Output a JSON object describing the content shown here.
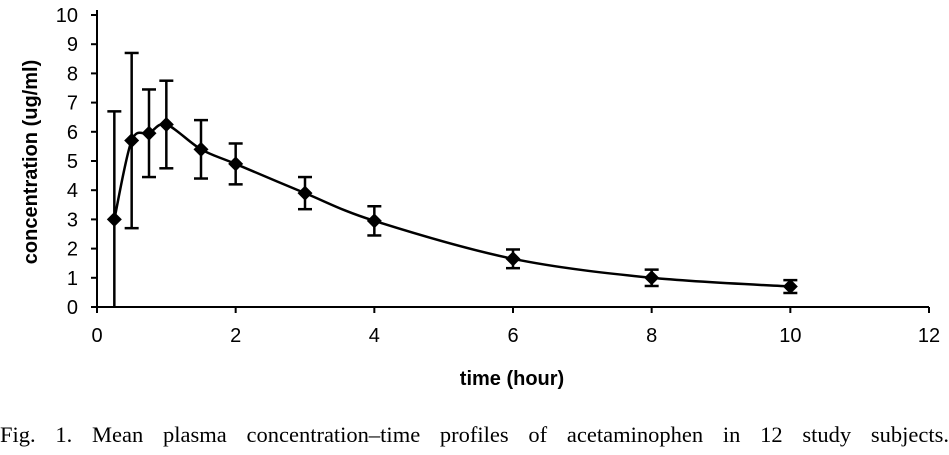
{
  "chart_data": {
    "type": "line",
    "title": "",
    "xlabel": "time (hour)",
    "ylabel": "concentration (ug/ml)",
    "xlim": [
      0,
      12
    ],
    "ylim": [
      0,
      10
    ],
    "xticks": [
      "0",
      "2",
      "4",
      "6",
      "8",
      "10",
      "12"
    ],
    "yticks": [
      "0",
      "1",
      "2",
      "3",
      "4",
      "5",
      "6",
      "7",
      "8",
      "9",
      "10"
    ],
    "grid": false,
    "legend": "none",
    "marker": "diamond",
    "series": [
      {
        "x": [
          0.25,
          0.5,
          0.75,
          1,
          1.5,
          2,
          3,
          4,
          6,
          8,
          10
        ],
        "y": [
          3.0,
          5.7,
          5.95,
          6.25,
          5.4,
          4.9,
          3.9,
          2.95,
          1.65,
          1.0,
          0.7
        ],
        "error": [
          3.7,
          3.0,
          1.5,
          1.5,
          1.0,
          0.7,
          0.55,
          0.5,
          0.32,
          0.28,
          0.22
        ]
      }
    ]
  },
  "caption": "Fig. 1. Mean plasma concentration–time profiles of acetaminophen in 12 study subjects."
}
